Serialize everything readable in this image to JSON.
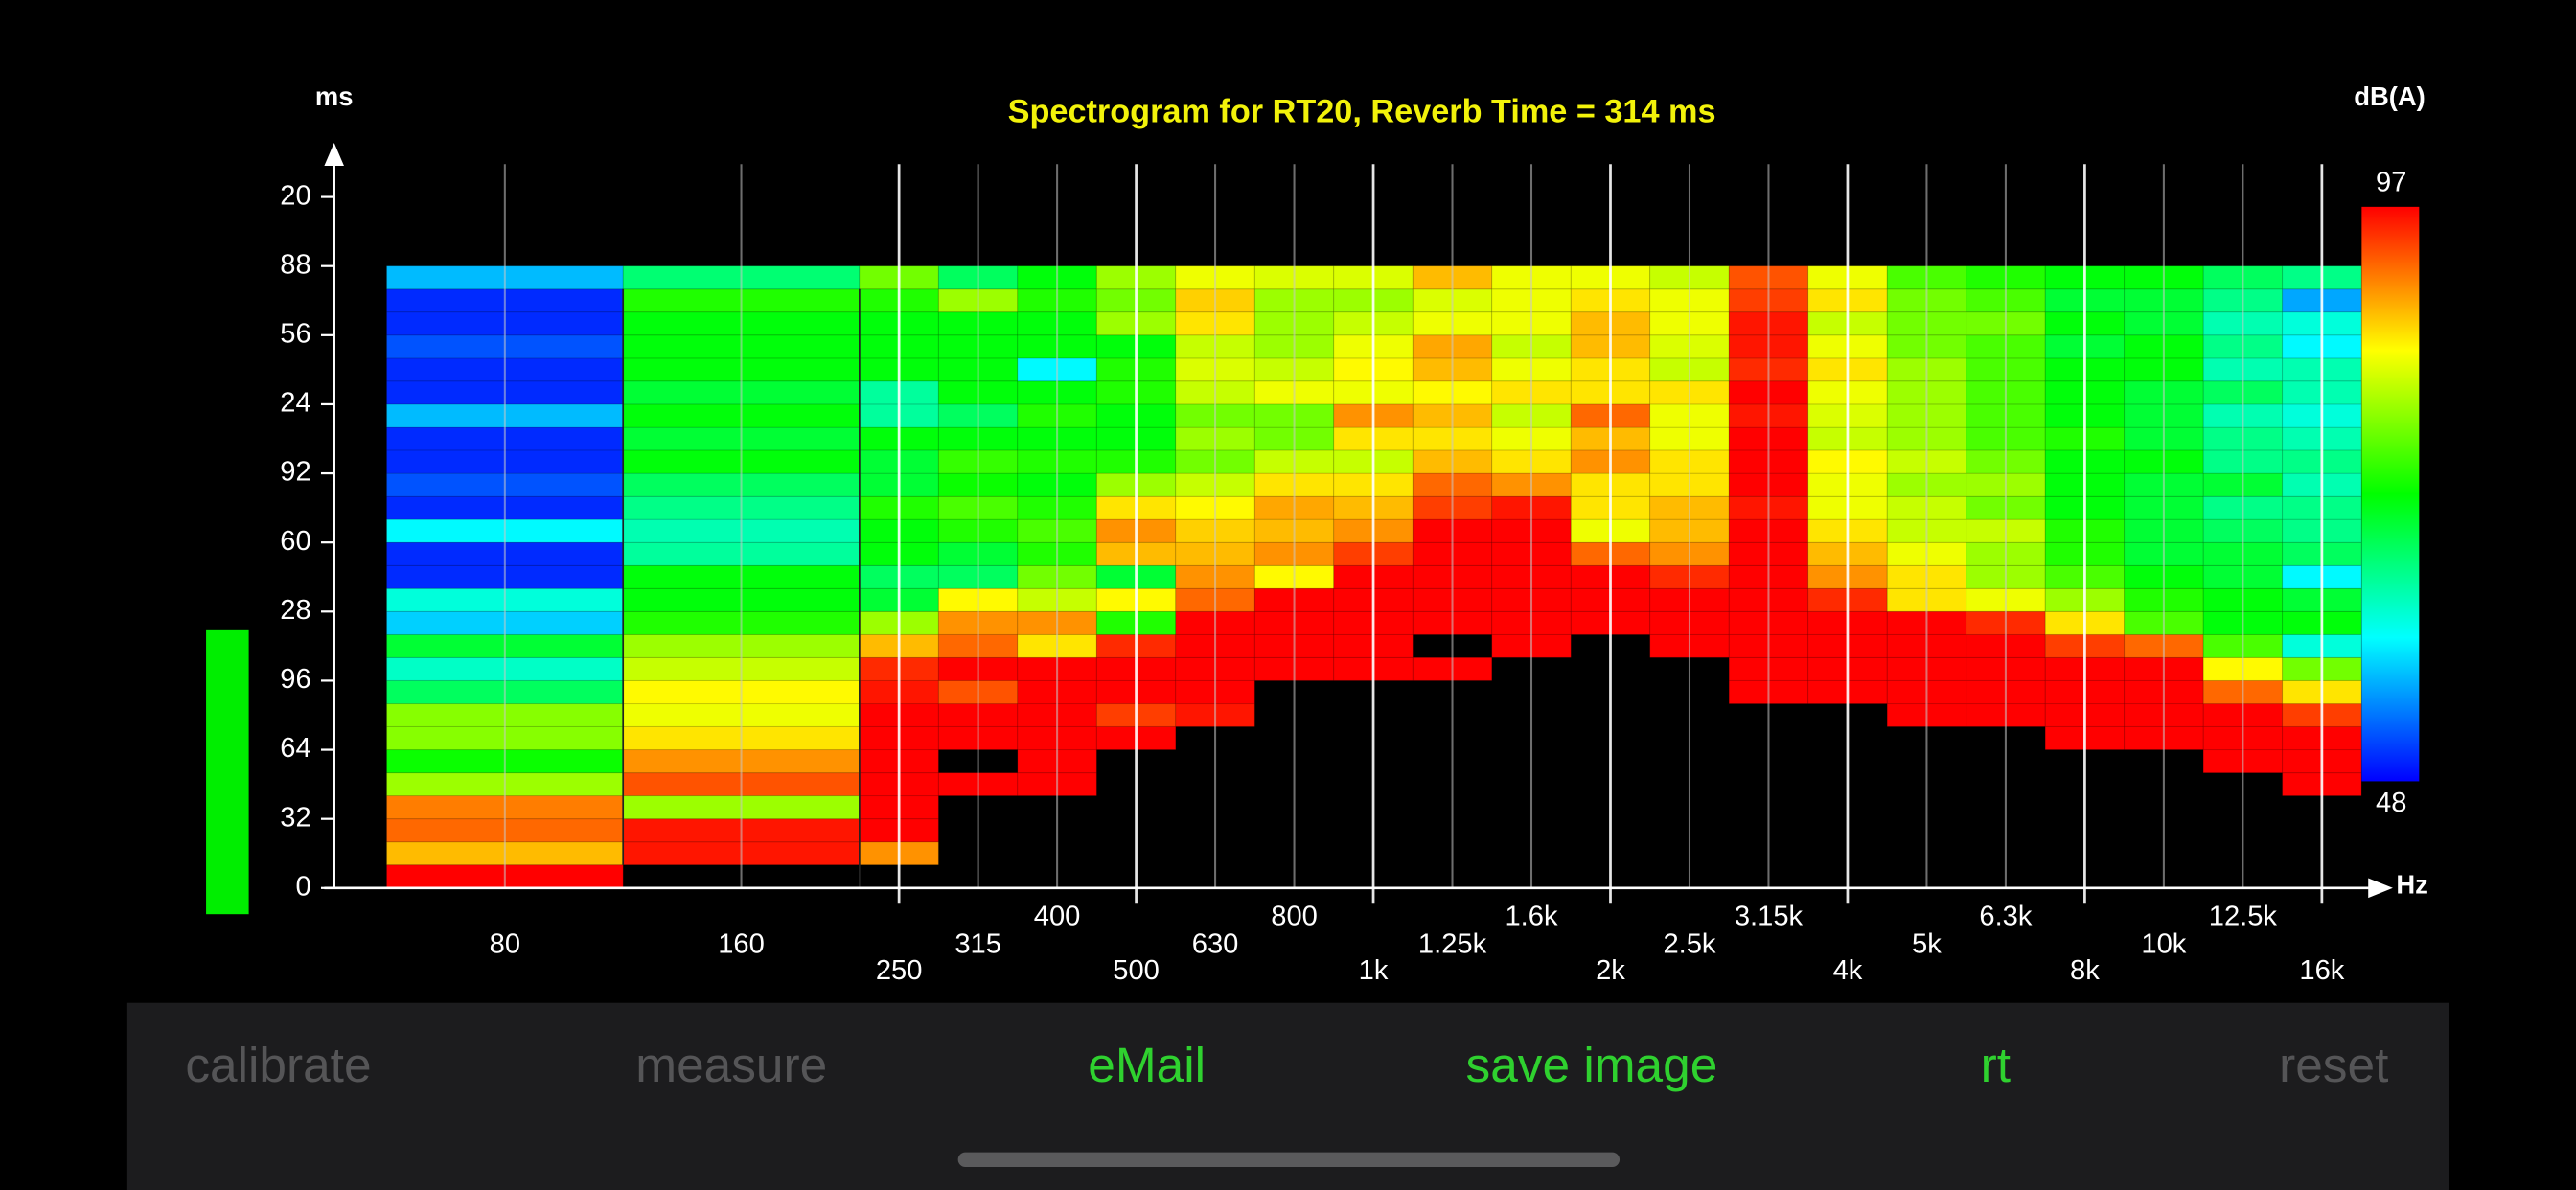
{
  "chart_data": {
    "type": "heatmap",
    "title": "Spectrogram for RT20, Reverb Time = 314 ms",
    "y_label": "ms",
    "x_label": "Hz",
    "colorbar_label": "dB(A)",
    "categories": [
      "80",
      "160",
      "250",
      "315",
      "400",
      "500",
      "630",
      "800",
      "1k",
      "1.25k",
      "1.6k",
      "2k",
      "2.5k",
      "3.15k",
      "4k",
      "5k",
      "6.3k",
      "8k",
      "10k",
      "12.5k",
      "16k"
    ],
    "y": [
      0,
      10.7,
      21.3,
      32,
      42.7,
      53.3,
      64,
      74.7,
      85.3,
      96,
      106.7,
      117.3,
      128,
      138.7,
      149.3,
      160,
      170.7,
      181.3,
      192,
      202.7,
      213.3,
      224,
      234.7,
      245.3,
      256,
      266.7,
      277.3
    ],
    "ylim": [
      0,
      320
    ],
    "yticks": [
      0,
      32,
      64,
      96,
      {
        "value": 128,
        "label": "28"
      },
      {
        "value": 160,
        "label": "60"
      },
      {
        "value": 192,
        "label": "92"
      },
      {
        "value": 224,
        "label": "24"
      },
      {
        "value": 256,
        "label": "56"
      },
      {
        "value": 288,
        "label": "88"
      },
      {
        "value": 320,
        "label": "20"
      }
    ],
    "zlim": [
      48,
      97
    ],
    "colorscale": [
      "#0000ff",
      "#00ffff",
      "#00ff00",
      "#ffff00",
      "#ff0000"
    ],
    "z": [
      [
        97,
        88,
        92,
        91,
        80,
        73,
        79,
        79,
        68,
        63,
        70,
        58,
        62,
        50,
        50,
        60,
        50,
        52,
        50,
        50,
        57,
        50,
        50,
        52,
        50,
        50,
        57
      ],
      [
        null,
        96,
        96,
        80,
        93,
        90,
        86,
        84,
        85,
        82,
        80,
        74,
        72,
        72,
        65,
        64,
        66,
        68,
        72,
        70,
        72,
        70,
        72,
        72,
        72,
        74,
        67
      ],
      [
        null,
        90,
        97,
        97,
        97,
        97,
        97,
        97,
        96,
        95,
        88,
        80,
        70,
        68,
        72,
        72,
        74,
        70,
        70,
        72,
        65,
        65,
        72,
        72,
        72,
        74,
        78
      ],
      [
        null,
        null,
        null,
        null,
        97,
        null,
        97,
        97,
        93,
        97,
        92,
        90,
        85,
        68,
        70,
        74,
        76,
        73,
        75,
        72,
        68,
        72,
        72,
        72,
        72,
        80,
        68
      ],
      [
        null,
        null,
        null,
        null,
        97,
        97,
        97,
        97,
        97,
        97,
        86,
        90,
        82,
        78,
        74,
        76,
        74,
        72,
        74,
        72,
        74,
        72,
        60,
        72,
        72,
        74,
        72
      ],
      [
        null,
        null,
        null,
        null,
        null,
        null,
        97,
        94,
        97,
        97,
        95,
        74,
        85,
        70,
        88,
        90,
        86,
        80,
        74,
        72,
        72,
        74,
        74,
        72,
        80,
        78,
        80
      ],
      [
        null,
        null,
        null,
        null,
        null,
        null,
        null,
        96,
        97,
        97,
        97,
        97,
        92,
        90,
        88,
        87,
        85,
        82,
        78,
        80,
        78,
        82,
        83,
        82,
        86,
        87,
        84
      ],
      [
        null,
        null,
        null,
        null,
        null,
        null,
        null,
        null,
        null,
        97,
        97,
        97,
        97,
        85,
        90,
        88,
        89,
        86,
        82,
        78,
        78,
        84,
        82,
        80,
        80,
        80,
        83
      ],
      [
        null,
        null,
        null,
        null,
        null,
        null,
        null,
        null,
        null,
        97,
        97,
        97,
        97,
        97,
        94,
        90,
        88,
        86,
        82,
        86,
        90,
        84,
        85,
        84,
        82,
        80,
        83
      ],
      [
        null,
        null,
        null,
        null,
        null,
        null,
        null,
        null,
        null,
        97,
        null,
        97,
        97,
        97,
        97,
        97,
        94,
        92,
        88,
        86,
        88,
        85,
        88,
        89,
        84,
        83,
        88
      ],
      [
        null,
        null,
        null,
        null,
        null,
        null,
        null,
        null,
        null,
        null,
        97,
        97,
        97,
        97,
        97,
        97,
        96,
        90,
        86,
        84,
        82,
        86,
        84,
        82,
        84,
        84,
        84
      ],
      [
        null,
        null,
        null,
        null,
        null,
        null,
        null,
        null,
        null,
        null,
        null,
        97,
        97,
        97,
        92,
        84,
        86,
        86,
        90,
        88,
        92,
        86,
        86,
        88,
        88,
        86,
        84
      ],
      [
        null,
        null,
        null,
        null,
        null,
        null,
        null,
        null,
        null,
        null,
        97,
        97,
        97,
        95,
        90,
        88,
        88,
        86,
        86,
        84,
        84,
        86,
        82,
        83,
        84,
        84,
        82
      ],
      [
        null,
        null,
        null,
        null,
        null,
        null,
        null,
        null,
        97,
        97,
        97,
        97,
        97,
        97,
        97,
        97,
        96,
        97,
        97,
        97,
        96,
        97,
        95,
        96,
        96,
        94,
        93
      ],
      [
        null,
        null,
        null,
        null,
        null,
        null,
        null,
        null,
        97,
        97,
        97,
        97,
        95,
        90,
        88,
        86,
        84,
        84,
        85,
        82,
        83,
        84,
        86,
        84,
        82,
        86,
        84
      ],
      [
        null,
        null,
        null,
        null,
        null,
        null,
        null,
        97,
        97,
        97,
        97,
        97,
        86,
        86,
        84,
        82,
        82,
        80,
        82,
        80,
        80,
        80,
        80,
        78,
        78,
        78,
        76
      ],
      [
        null,
        null,
        null,
        null,
        null,
        null,
        null,
        97,
        97,
        97,
        97,
        95,
        84,
        80,
        80,
        82,
        78,
        80,
        78,
        76,
        76,
        76,
        76,
        76,
        78,
        76,
        74
      ],
      [
        null,
        null,
        null,
        null,
        null,
        null,
        97,
        97,
        97,
        97,
        94,
        86,
        80,
        76,
        74,
        74,
        72,
        72,
        72,
        74,
        72,
        72,
        72,
        70,
        72,
        70,
        72
      ],
      [
        null,
        null,
        null,
        null,
        null,
        null,
        97,
        97,
        97,
        97,
        92,
        76,
        74,
        72,
        70,
        70,
        70,
        70,
        72,
        70,
        70,
        70,
        72,
        72,
        70,
        70,
        72
      ],
      [
        null,
        null,
        null,
        null,
        null,
        97,
        97,
        97,
        92,
        85,
        76,
        72,
        72,
        70,
        70,
        68,
        66,
        70,
        66,
        66,
        64,
        68,
        64,
        66,
        64,
        66,
        68
      ],
      [
        null,
        null,
        null,
        null,
        97,
        97,
        97,
        94,
        86,
        78,
        62,
        72,
        70,
        60,
        68,
        66,
        66,
        64,
        66,
        64,
        62,
        64,
        64,
        60,
        62,
        56,
        66
      ]
    ]
  },
  "toolbar": {
    "buttons": [
      "calibrate",
      "measure",
      "eMail",
      "save image",
      "rt",
      "reset"
    ]
  }
}
